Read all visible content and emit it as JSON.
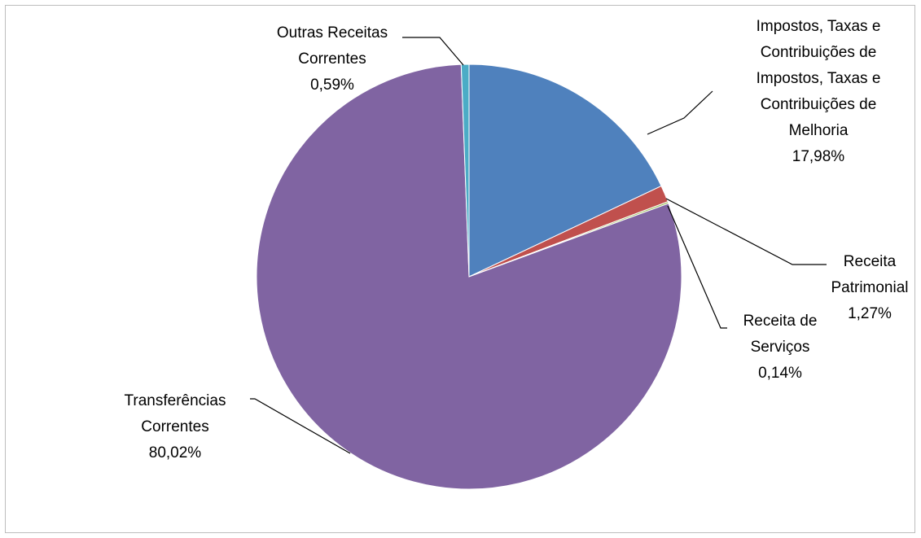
{
  "chart_data": {
    "type": "pie",
    "title": "",
    "legend": "none",
    "categories": [
      "Impostos, Taxas e Contribuições de Impostos, Taxas e Contribuições de Melhoria",
      "Receita Patrimonial",
      "Receita de Serviços",
      "Transferências Correntes",
      "Outras Receitas Correntes"
    ],
    "values": [
      17.98,
      1.27,
      0.14,
      80.02,
      0.59
    ],
    "colors": [
      "#4F81BD",
      "#C0504D",
      "#9BBB59",
      "#8064A2",
      "#4BACC6"
    ],
    "data_labels": [
      {
        "lines": [
          "Impostos, Taxas e",
          "Contribuições de",
          "Impostos, Taxas e",
          "Contribuições de",
          "Melhoria"
        ],
        "value": "17,98%"
      },
      {
        "lines": [
          "Receita",
          "Patrimonial"
        ],
        "value": "1,27%"
      },
      {
        "lines": [
          "Receita de",
          "Serviços"
        ],
        "value": "0,14%"
      },
      {
        "lines": [
          "Transferências",
          "Correntes"
        ],
        "value": "80,02%"
      },
      {
        "lines": [
          "Outras Receitas",
          "Correntes"
        ],
        "value": "0,59%"
      }
    ]
  }
}
